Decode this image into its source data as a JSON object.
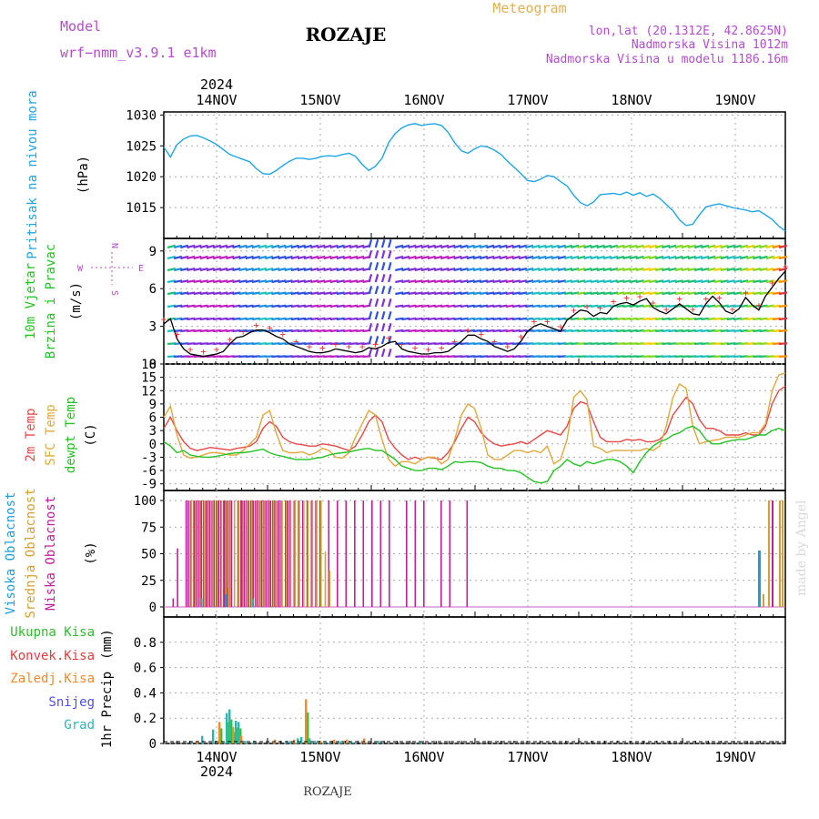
{
  "header": {
    "model_label": "Model",
    "model_name": "wrf−nmm_v3.9.1 e1km",
    "title": "ROZAJE",
    "meteogram": "Meteogram",
    "lonlat": "lon,lat (20.1312E, 42.8625N)",
    "altitude": "Nadmorska Visina 1012m",
    "model_altitude": "Nadmorska Visina u modelu 1186.16m",
    "year_top": "2024"
  },
  "footer": {
    "station": "ROZAJE",
    "year": "2024",
    "credit": "made by Angel"
  },
  "colors": {
    "pressure": "#1ea6e6",
    "temp2m": "#e84848",
    "sfc": "#e2a83c",
    "dewpt": "#22c322",
    "high_cloud": "#1a9ee0",
    "mid_cloud": "#d4a030",
    "low_cloud": "#c0209a",
    "total_precip": "#2ebd2e",
    "convective": "#e83c3c",
    "frozen": "#f08a2a",
    "snow": "#5050e0",
    "graupel": "#28b8b0",
    "title_purple": "#b44ccf"
  },
  "chart_data": [
    {
      "type": "line",
      "panel": "pressure",
      "title": "",
      "ylabel_left": "Pritisak na nivou mora",
      "ylabel_unit": "(hPa)",
      "x_labels": [
        "14NOV",
        "15NOV",
        "16NOV",
        "17NOV",
        "18NOV",
        "19NOV"
      ],
      "yticks": [
        1015,
        1020,
        1025,
        1030
      ],
      "ylim": [
        1010,
        1030.5
      ],
      "grid": true,
      "series": [
        {
          "values": [
            1024.8,
            1023.2,
            1025.2,
            1026.1,
            1026.6,
            1026.7,
            1026.3,
            1025.8,
            1025.2,
            1024.4,
            1023.6,
            1023.2,
            1022.8,
            1022.4,
            1021.3,
            1020.5,
            1020.4,
            1021.0,
            1021.8,
            1022.5,
            1023.0,
            1023.0,
            1022.8,
            1023.0,
            1023.3,
            1023.4,
            1023.3,
            1023.6,
            1023.8,
            1023.3,
            1022.0,
            1021.0,
            1021.7,
            1023.0,
            1025.5,
            1027.0,
            1027.9,
            1028.4,
            1028.6,
            1028.3,
            1028.5,
            1028.6,
            1028.3,
            1027.2,
            1025.5,
            1024.2,
            1023.8,
            1024.5,
            1025.0,
            1024.8,
            1024.3,
            1023.6,
            1022.5,
            1021.5,
            1020.5,
            1019.4,
            1019.2,
            1019.6,
            1020.2,
            1020.0,
            1019.2,
            1018.5,
            1017.0,
            1015.8,
            1015.3,
            1015.9,
            1017.1,
            1017.2,
            1017.3,
            1017.1,
            1017.5,
            1017.0,
            1017.4,
            1016.8,
            1017.2,
            1016.5,
            1015.5,
            1014.5,
            1013.0,
            1012.1,
            1012.3,
            1013.8,
            1015.1,
            1015.4,
            1015.6,
            1015.3,
            1015.0,
            1014.8,
            1014.6,
            1014.3,
            1014.5,
            1013.8,
            1013.1,
            1012.0,
            1011.2
          ]
        }
      ]
    },
    {
      "type": "line",
      "panel": "wind",
      "title": "",
      "ylabel_left_1": "10m Vjetar",
      "ylabel_left_2": "Brzina i Pravac",
      "ylabel_unit": "(m/s)",
      "compass_n": "N",
      "compass_s": "S",
      "compass_w": "W",
      "compass_e": "E",
      "yticks": [
        0,
        3,
        6,
        9
      ],
      "ylim": [
        0,
        10
      ],
      "series": [
        {
          "name": "speed",
          "values": [
            3.2,
            3.6,
            2.0,
            1.2,
            0.8,
            0.7,
            0.6,
            0.7,
            0.8,
            1.0,
            1.6,
            2.1,
            2.2,
            2.5,
            2.7,
            2.7,
            2.5,
            2.2,
            2.0,
            1.6,
            1.4,
            1.2,
            1.0,
            0.9,
            0.9,
            1.0,
            1.2,
            1.1,
            1.0,
            0.9,
            1.0,
            1.3,
            1.2,
            1.4,
            1.7,
            1.8,
            1.2,
            1.0,
            0.9,
            0.8,
            0.8,
            0.9,
            0.9,
            1.0,
            1.4,
            1.8,
            2.3,
            2.3,
            2.0,
            1.8,
            1.4,
            1.2,
            1.0,
            1.2,
            1.8,
            2.6,
            3.0,
            3.2,
            3.0,
            2.8,
            2.6,
            3.5,
            3.9,
            4.3,
            4.2,
            3.8,
            4.1,
            4.0,
            4.6,
            4.8,
            4.9,
            4.7,
            5.0,
            5.2,
            4.5,
            4.2,
            4.0,
            4.4,
            4.8,
            4.4,
            4.0,
            3.9,
            4.8,
            5.4,
            4.9,
            4.2,
            4.0,
            4.4,
            5.3,
            4.7,
            4.3,
            5.4,
            6.1,
            6.8,
            7.4
          ]
        }
      ]
    },
    {
      "type": "line",
      "panel": "temperature",
      "title": "",
      "ylabel_1": "2m Temp",
      "ylabel_2": "SFC Temp",
      "ylabel_3": "dewpt Temp",
      "ylabel_unit": "(C)",
      "yticks": [
        -9,
        -6,
        -3,
        0,
        3,
        6,
        9,
        12,
        15,
        18
      ],
      "ylim": [
        -10.5,
        18
      ],
      "series": [
        {
          "name": "2m Temp",
          "values": [
            3.5,
            6.0,
            3.0,
            0.5,
            -1.0,
            -1.5,
            -1.2,
            -0.8,
            -1.0,
            -1.2,
            -1.4,
            -1.0,
            -0.8,
            -0.5,
            0.5,
            3.5,
            5.0,
            4.0,
            1.5,
            0.5,
            0.0,
            -0.2,
            -0.5,
            -0.5,
            0.0,
            -0.2,
            -0.5,
            -1.0,
            -1.5,
            -0.5,
            2.0,
            5.0,
            6.5,
            5.0,
            1.0,
            -1.0,
            -2.5,
            -3.5,
            -3.0,
            -3.5,
            -3.0,
            -3.2,
            -3.5,
            -2.0,
            0.5,
            3.5,
            6.0,
            5.0,
            2.5,
            1.0,
            0.0,
            -0.5,
            -0.2,
            0.0,
            0.5,
            0.0,
            1.0,
            2.0,
            3.0,
            2.5,
            2.0,
            4.0,
            8.0,
            9.5,
            9.0,
            5.0,
            1.5,
            0.5,
            0.5,
            0.5,
            1.0,
            0.8,
            1.0,
            0.5,
            0.5,
            1.0,
            2.5,
            6.5,
            8.5,
            10.5,
            9.0,
            5.5,
            3.5,
            3.5,
            3.0,
            2.0,
            2.0,
            2.0,
            2.5,
            2.0,
            2.0,
            4.0,
            9.0,
            12.0,
            13.0
          ]
        },
        {
          "name": "SFC Temp",
          "values": [
            6.0,
            8.5,
            2.0,
            -2.5,
            -3.2,
            -3.0,
            -2.5,
            -2.0,
            -2.0,
            -2.2,
            -2.5,
            -2.5,
            -1.5,
            0.0,
            1.5,
            6.5,
            7.5,
            2.5,
            -1.5,
            -2.0,
            -2.0,
            -1.8,
            -2.5,
            -2.0,
            -1.0,
            -1.5,
            -3.0,
            -3.2,
            -2.0,
            1.5,
            4.5,
            7.5,
            6.5,
            1.0,
            -3.5,
            -5.0,
            -4.0,
            -4.0,
            -4.5,
            -3.5,
            -3.0,
            -3.0,
            -4.5,
            -3.5,
            1.0,
            6.5,
            9.0,
            8.0,
            3.5,
            -2.5,
            -3.5,
            -3.5,
            -2.5,
            -1.5,
            -1.5,
            -2.0,
            -1.5,
            -2.0,
            -0.5,
            -4.5,
            -3.5,
            1.0,
            10.5,
            12.0,
            10.0,
            -0.5,
            -1.0,
            -2.0,
            -1.5,
            -1.5,
            -1.5,
            -1.5,
            -1.5,
            -1.0,
            -1.5,
            -0.5,
            4.0,
            10.5,
            13.5,
            12.5,
            4.0,
            0.0,
            0.5,
            0.8,
            1.0,
            1.5,
            1.5,
            1.5,
            2.0,
            2.5,
            2.5,
            4.5,
            12.0,
            15.5,
            16.0
          ]
        },
        {
          "name": "dewpt Temp",
          "values": [
            0.5,
            -0.5,
            -2.0,
            -1.5,
            -2.5,
            -2.8,
            -3.0,
            -3.0,
            -2.8,
            -2.5,
            -2.2,
            -2.0,
            -2.0,
            -1.8,
            -1.5,
            -1.2,
            -2.0,
            -2.5,
            -2.8,
            -3.2,
            -3.5,
            -3.5,
            -3.5,
            -3.2,
            -3.0,
            -2.5,
            -2.2,
            -2.0,
            -1.8,
            -1.5,
            -1.2,
            -1.0,
            -1.5,
            -1.5,
            -2.5,
            -3.5,
            -5.0,
            -5.5,
            -6.0,
            -6.0,
            -5.5,
            -5.5,
            -5.8,
            -5.0,
            -4.0,
            -4.2,
            -4.0,
            -4.0,
            -4.2,
            -5.0,
            -5.5,
            -5.5,
            -6.0,
            -6.0,
            -6.5,
            -7.5,
            -8.5,
            -8.8,
            -8.5,
            -6.0,
            -5.0,
            -3.5,
            -4.5,
            -5.0,
            -4.0,
            -4.5,
            -4.0,
            -3.5,
            -3.5,
            -4.0,
            -5.0,
            -6.5,
            -4.0,
            -2.0,
            -0.5,
            0.5,
            1.0,
            2.0,
            2.5,
            3.5,
            4.0,
            3.0,
            1.0,
            0.0,
            0.0,
            0.5,
            0.8,
            1.0,
            1.0,
            1.5,
            2.0,
            2.0,
            3.0,
            3.5,
            3.0
          ]
        }
      ]
    },
    {
      "type": "bar",
      "panel": "clouds",
      "title": "",
      "ylabel_1": "Visoka Oblacnost",
      "ylabel_2": "Srednja Oblacnost",
      "ylabel_3": "Niska Oblacnost",
      "ylabel_unit": "(%)",
      "yticks": [
        0,
        25,
        50,
        75,
        100
      ],
      "ylim": [
        0,
        100
      ],
      "series": [
        {
          "name": "Niska",
          "x": [
            2,
            3,
            5,
            5.5,
            6,
            6.8,
            7,
            7.5,
            8,
            8.5,
            9,
            9.6,
            10,
            10.5,
            11,
            11.5,
            12,
            12.5,
            13,
            13.7,
            14,
            14.5,
            15,
            15.5,
            17,
            17.7,
            18,
            18.5,
            19,
            19.5,
            20,
            20.5,
            21,
            21.5,
            22,
            22.5,
            23,
            23.5,
            24,
            24.5,
            25,
            25.5,
            26,
            26.5,
            27,
            28,
            28.5,
            29,
            30,
            31,
            32,
            33,
            34,
            35,
            36,
            38,
            40,
            42,
            44,
            46,
            48,
            50,
            52,
            56,
            58,
            60,
            64,
            66,
            70
          ],
          "values": [
            8,
            55,
            100,
            100,
            100,
            100,
            100,
            100,
            100,
            100,
            100,
            100,
            100,
            100,
            100,
            100,
            100,
            100,
            100,
            100,
            100,
            100,
            100,
            100,
            100,
            100,
            100,
            100,
            100,
            100,
            100,
            100,
            100,
            100,
            100,
            100,
            100,
            100,
            100,
            100,
            100,
            100,
            100,
            100,
            100,
            100,
            100,
            100,
            100,
            100,
            100,
            100,
            100,
            100,
            100,
            100,
            100,
            100,
            100,
            100,
            100,
            100,
            100,
            100,
            100,
            100,
            100,
            100,
            100
          ]
        },
        {
          "name": "Srednja",
          "x": [
            6.2,
            7.2,
            8.2,
            9.2,
            10.2,
            11.2,
            12.2,
            13.2,
            14.2,
            14.8,
            15.2,
            16.2,
            17.2,
            18.2,
            19.2,
            20.2,
            21.2,
            22.2,
            23.2,
            24.2,
            25.2,
            26.2,
            27.2,
            28.2,
            29.2,
            30.2,
            31.2,
            32.2,
            33.2,
            34.2,
            35.2,
            36.2,
            37.2,
            38.2
          ],
          "values": [
            100,
            100,
            100,
            100,
            100,
            100,
            100,
            100,
            100,
            18,
            100,
            100,
            100,
            100,
            100,
            100,
            100,
            100,
            100,
            100,
            100,
            100,
            100,
            100,
            100,
            100,
            100,
            100,
            100,
            100,
            100,
            100,
            52,
            34
          ]
        },
        {
          "name": "Visoka",
          "x": [
            8.6,
            14.2,
            20.5
          ],
          "values": [
            8,
            12,
            8
          ]
        }
      ]
    },
    {
      "type": "bar",
      "panel": "precip",
      "title": "",
      "legend": [
        "Ukupna Kisa",
        "Konvek.Kisa",
        "Zaledj.Kisa",
        "Snijeg",
        "Grad"
      ],
      "ylabel_unit_1": "1hr Precip",
      "ylabel_unit_2": "(mm)",
      "yticks": [
        0,
        0.2,
        0.4,
        0.6,
        0.8
      ],
      "ylim": [
        0,
        1.0
      ],
      "series": [
        {
          "name": "Ukupna Kisa",
          "values": [
            0.01,
            0.02,
            0.06,
            0.11,
            0.17,
            0.24,
            0.27,
            0.13,
            0.18,
            0.17,
            0.06,
            0.02,
            0.02,
            0.03,
            0.02,
            0.02,
            0.03,
            0.04,
            0.05,
            0.35,
            0.04,
            0.02,
            0.02,
            0.01,
            0.01,
            0.03,
            0.01,
            0.02,
            0.03,
            0.02,
            0.01,
            0.04,
            0.02,
            0.01
          ]
        }
      ]
    }
  ]
}
